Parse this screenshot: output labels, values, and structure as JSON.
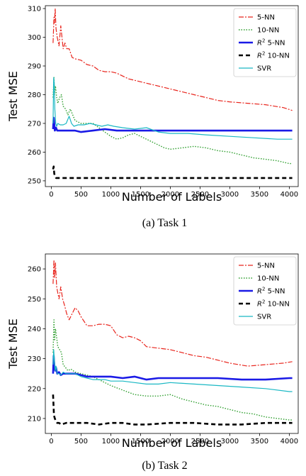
{
  "chart_data": [
    {
      "type": "line",
      "caption": "(a) Task 1",
      "xlabel": "Number of Labels",
      "ylabel": "Test MSE",
      "xlim": [
        -100,
        4150
      ],
      "ylim": [
        248,
        311
      ],
      "xticks": [
        0,
        500,
        1000,
        1500,
        2000,
        2500,
        3000,
        3500,
        4000
      ],
      "yticks": [
        250,
        260,
        270,
        280,
        290,
        300,
        310
      ],
      "legend": "top-right",
      "series": [
        {
          "name": "5-NN",
          "color": "#e8241c",
          "dash": "7 2 2 2",
          "width": 1.2,
          "x": [
            30,
            45,
            55,
            65,
            80,
            100,
            130,
            160,
            180,
            200,
            230,
            260,
            300,
            350,
            400,
            500,
            600,
            700,
            800,
            900,
            1000,
            1100,
            1200,
            1300,
            1400,
            1600,
            1800,
            2000,
            2200,
            2400,
            2600,
            2800,
            3000,
            3300,
            3600,
            3900,
            4050
          ],
          "y": [
            298,
            307,
            305,
            310,
            303,
            300,
            297,
            304,
            300,
            296,
            298,
            296,
            296,
            293,
            292.5,
            292,
            290.5,
            290,
            288.5,
            288,
            288,
            287.5,
            286.5,
            285.5,
            285,
            284,
            283,
            282,
            281,
            280,
            279,
            278,
            277.5,
            277,
            276.5,
            275.5,
            274.5
          ]
        },
        {
          "name": "10-NN",
          "color": "#2e9e2e",
          "dash": "1.5 2",
          "width": 1.4,
          "x": [
            30,
            45,
            55,
            70,
            90,
            110,
            140,
            170,
            200,
            240,
            280,
            320,
            360,
            400,
            500,
            600,
            700,
            800,
            900,
            1000,
            1100,
            1200,
            1300,
            1400,
            1500,
            1600,
            1700,
            1800,
            1900,
            2000,
            2200,
            2400,
            2600,
            2800,
            3000,
            3200,
            3400,
            3600,
            3800,
            4000,
            4050
          ],
          "y": [
            279,
            286,
            280,
            283,
            279,
            277,
            279,
            280,
            276,
            275,
            273,
            275,
            273,
            271,
            270,
            270,
            270,
            268.5,
            267,
            265.5,
            264.5,
            265,
            266,
            266.5,
            265.5,
            264.5,
            263.5,
            262.5,
            261.5,
            261,
            261.5,
            262,
            261.5,
            260.5,
            260,
            259,
            258,
            257.5,
            257,
            256,
            256
          ]
        },
        {
          "name": "R² 5-NN",
          "color": "#1a1ae6",
          "dash": "",
          "width": 2.6,
          "x": [
            30,
            40,
            50,
            60,
            80,
            100,
            150,
            200,
            300,
            400,
            500,
            700,
            900,
            1100,
            1300,
            1500,
            1700,
            2000,
            2500,
            3000,
            3500,
            4000,
            4050
          ],
          "y": [
            268,
            272,
            270,
            267.5,
            268.5,
            267.5,
            267.5,
            267.5,
            267.5,
            267.5,
            267,
            267.5,
            268,
            267.5,
            267.5,
            267.5,
            267.5,
            267.5,
            267.5,
            267.5,
            267.5,
            267.5,
            267.5
          ]
        },
        {
          "name": "R² 10-NN",
          "color": "#000000",
          "dash": "6 4",
          "width": 2.6,
          "x": [
            30,
            40,
            50,
            65,
            80,
            100,
            130,
            170,
            250,
            400,
            600,
            1000,
            1500,
            2000,
            2500,
            3000,
            3500,
            4000,
            4050
          ],
          "y": [
            254,
            255,
            252.5,
            251.5,
            251,
            251,
            251,
            251,
            251,
            251,
            251,
            251,
            251,
            251,
            251,
            251,
            251,
            251,
            251
          ]
        },
        {
          "name": "SVR",
          "color": "#1ab8c4",
          "dash": "",
          "width": 1.2,
          "x": [
            30,
            40,
            50,
            60,
            75,
            90,
            110,
            150,
            200,
            250,
            300,
            340,
            380,
            450,
            550,
            650,
            750,
            850,
            950,
            1050,
            1200,
            1400,
            1600,
            1800,
            2000,
            2300,
            2600,
            3000,
            3400,
            3800,
            4050
          ],
          "y": [
            270,
            286,
            284,
            275,
            270,
            269,
            270,
            269.5,
            269.5,
            270,
            272.5,
            270,
            269,
            269.5,
            269.5,
            270,
            269.5,
            269,
            269.5,
            269,
            268.5,
            268,
            268.5,
            267,
            266.5,
            266.5,
            266,
            265.5,
            265,
            264.5,
            264.5
          ]
        }
      ]
    },
    {
      "type": "line",
      "caption": "(b) Task 2",
      "xlabel": "Number of Labels",
      "ylabel": "Test MSE",
      "xlim": [
        -100,
        4150
      ],
      "ylim": [
        205,
        265
      ],
      "xticks": [
        0,
        500,
        1000,
        1500,
        2000,
        2500,
        3000,
        3500,
        4000
      ],
      "yticks": [
        210,
        220,
        230,
        240,
        250,
        260
      ],
      "legend": "top-right",
      "series": [
        {
          "name": "5-NN",
          "color": "#e8241c",
          "dash": "7 2 2 2",
          "width": 1.2,
          "x": [
            30,
            45,
            55,
            70,
            90,
            110,
            130,
            160,
            190,
            220,
            260,
            300,
            350,
            400,
            450,
            500,
            600,
            700,
            800,
            900,
            1000,
            1100,
            1200,
            1300,
            1400,
            1500,
            1600,
            1800,
            2000,
            2200,
            2400,
            2600,
            2800,
            3000,
            3300,
            3600,
            3900,
            4050
          ],
          "y": [
            255,
            263,
            257,
            262,
            254,
            252,
            250,
            254,
            250,
            248,
            245,
            243,
            245,
            247,
            246,
            244,
            241,
            241,
            241.5,
            241.5,
            241,
            238,
            237,
            237.5,
            237,
            236,
            234,
            233.5,
            233,
            232,
            231,
            230.5,
            229.5,
            228.5,
            227.5,
            228,
            228.5,
            229
          ]
        },
        {
          "name": "10-NN",
          "color": "#2e9e2e",
          "dash": "1.5 2",
          "width": 1.4,
          "x": [
            30,
            45,
            55,
            70,
            90,
            110,
            140,
            170,
            200,
            240,
            280,
            330,
            400,
            500,
            600,
            700,
            800,
            900,
            1000,
            1200,
            1400,
            1600,
            1800,
            2000,
            2200,
            2400,
            2600,
            2800,
            3000,
            3200,
            3400,
            3600,
            3800,
            4000,
            4050
          ],
          "y": [
            232,
            243,
            236,
            240,
            237,
            234,
            233,
            232,
            228,
            227,
            226,
            226.5,
            225.5,
            225,
            224.5,
            224,
            223,
            222,
            221,
            219.5,
            218,
            217.5,
            217.5,
            218,
            216.5,
            215.5,
            214.5,
            214,
            213,
            212,
            211.5,
            210.5,
            210,
            209.5,
            209.5
          ]
        },
        {
          "name": "R² 5-NN",
          "color": "#1a1ae6",
          "dash": "",
          "width": 2.6,
          "x": [
            30,
            40,
            50,
            65,
            80,
            100,
            130,
            160,
            200,
            250,
            300,
            400,
            500,
            600,
            800,
            1000,
            1200,
            1400,
            1600,
            1800,
            2000,
            2400,
            2800,
            3200,
            3600,
            4000,
            4050
          ],
          "y": [
            225,
            231,
            228,
            226,
            227,
            225,
            225.5,
            224.5,
            225,
            225,
            225,
            225,
            224.5,
            224,
            224,
            224,
            223.5,
            224,
            223,
            223.5,
            223.5,
            223.5,
            223.5,
            223,
            223,
            223.5,
            223.5
          ]
        },
        {
          "name": "R² 10-NN",
          "color": "#000000",
          "dash": "6 4",
          "width": 2.6,
          "x": [
            30,
            45,
            60,
            80,
            100,
            130,
            170,
            250,
            400,
            600,
            800,
            1000,
            1200,
            1400,
            1600,
            2000,
            2400,
            2800,
            3200,
            3600,
            4000,
            4050
          ],
          "y": [
            218,
            211,
            210,
            209,
            208.5,
            208.5,
            208,
            208.5,
            208.5,
            208.5,
            208,
            208.5,
            208.5,
            208,
            208,
            208.5,
            208.5,
            208,
            208,
            208.5,
            208.5,
            208.5
          ]
        },
        {
          "name": "SVR",
          "color": "#1ab8c4",
          "dash": "",
          "width": 1.2,
          "x": [
            30,
            40,
            50,
            65,
            80,
            100,
            130,
            160,
            200,
            250,
            300,
            400,
            500,
            600,
            700,
            800,
            900,
            1000,
            1200,
            1400,
            1600,
            1800,
            2000,
            2400,
            2800,
            3200,
            3600,
            4000,
            4050
          ],
          "y": [
            228,
            233,
            230,
            226,
            227.5,
            225,
            225,
            224.5,
            225.5,
            225,
            225,
            225,
            224,
            223.5,
            223,
            223,
            223,
            222.5,
            222.5,
            222,
            221.5,
            221.5,
            222,
            221.5,
            221,
            220.5,
            220,
            219,
            219
          ]
        }
      ]
    }
  ]
}
